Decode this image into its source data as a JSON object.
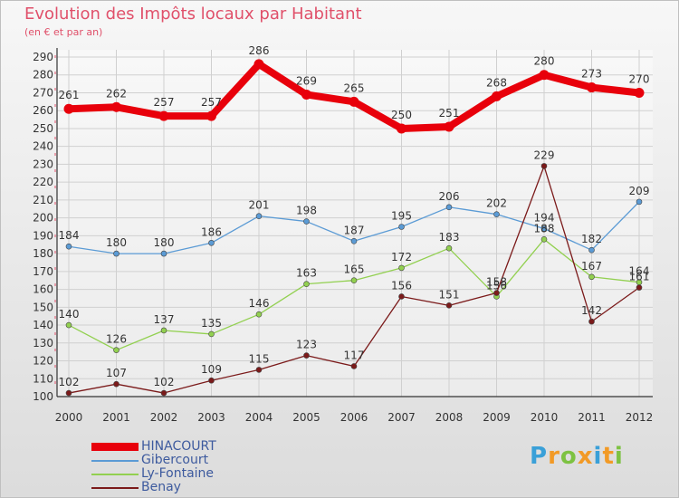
{
  "title": "Evolution des Impôts locaux par Habitant",
  "subtitle": "(en € et par an)",
  "logo": {
    "text": "Proxiti",
    "letter_colors": [
      "#3aa0d8",
      "#f29a26",
      "#7dc242",
      "#f29a26",
      "#3aa0d8",
      "#f29a26",
      "#7dc242"
    ]
  },
  "chart_data": {
    "type": "line",
    "title": "Evolution des Impôts locaux par Habitant",
    "subtitle": "(en € et par an)",
    "x": [
      "2000",
      "2001",
      "2002",
      "2003",
      "2004",
      "2005",
      "2006",
      "2007",
      "2008",
      "2009",
      "2010",
      "2011",
      "2012"
    ],
    "ylim": [
      100,
      290
    ],
    "yticks": [
      100,
      110,
      120,
      130,
      140,
      150,
      160,
      170,
      180,
      190,
      200,
      210,
      220,
      230,
      240,
      250,
      260,
      270,
      280,
      290
    ],
    "grid": true,
    "legend_position": "bottom-left",
    "series": [
      {
        "name": "HINACOURT",
        "color": "#e8000b",
        "values": [
          261,
          262,
          257,
          257,
          286,
          269,
          265,
          250,
          251,
          268,
          280,
          273,
          270
        ]
      },
      {
        "name": "Gibercourt",
        "color": "#5b9bd5",
        "values": [
          184,
          180,
          180,
          186,
          201,
          198,
          187,
          195,
          206,
          202,
          194,
          182,
          209
        ]
      },
      {
        "name": "Ly-Fontaine",
        "color": "#92d050",
        "values": [
          140,
          126,
          137,
          135,
          146,
          163,
          165,
          172,
          183,
          156,
          188,
          167,
          164
        ]
      },
      {
        "name": "Benay",
        "color": "#7b1a1a",
        "values": [
          102,
          107,
          102,
          109,
          115,
          123,
          117,
          156,
          151,
          158,
          229,
          142,
          161
        ]
      }
    ]
  }
}
